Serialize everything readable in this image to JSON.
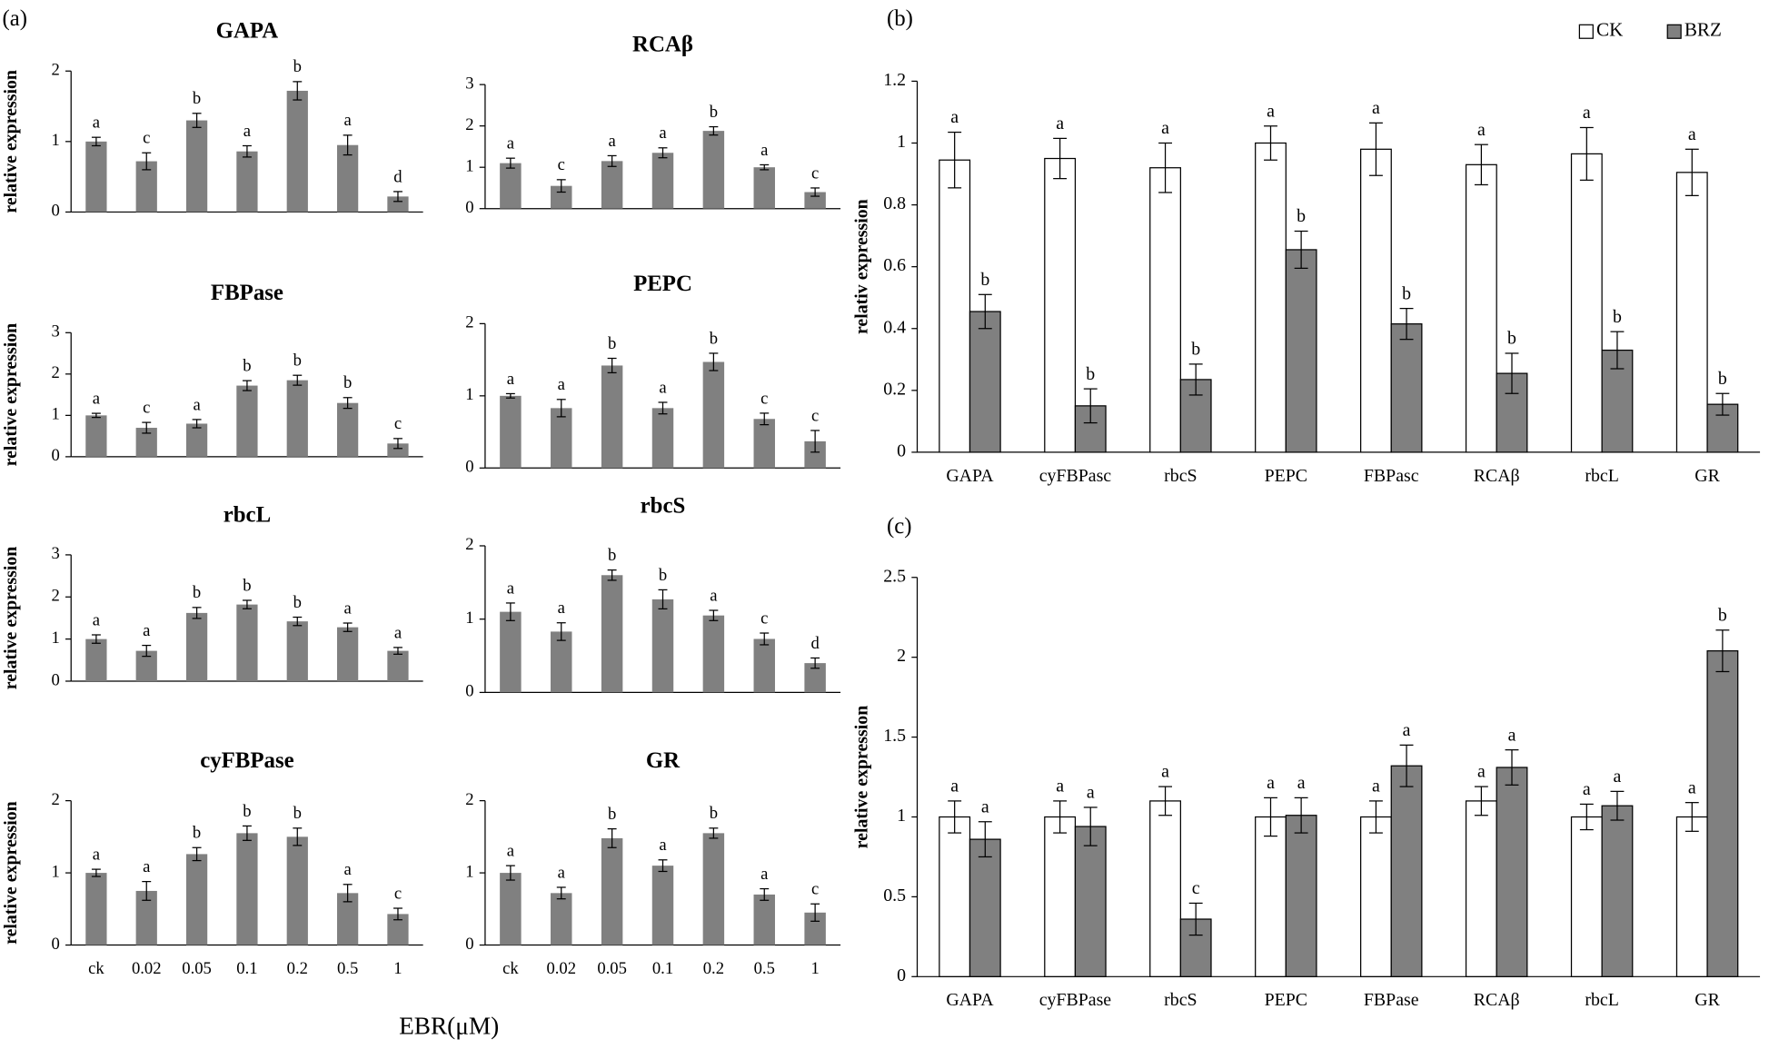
{
  "panel_labels": [
    "(a)",
    "(b)",
    "(c)"
  ],
  "x_label": "EBR(μM)",
  "chart_data": [
    {
      "type": "bar",
      "title": "GAPA",
      "y_label": "relative expression",
      "categories": [
        null,
        null,
        null,
        null,
        null,
        null,
        null
      ],
      "color": "#808080",
      "ylim": [
        0,
        2
      ],
      "yticks": [
        0,
        1,
        2
      ],
      "values": [
        1.0,
        0.72,
        1.3,
        0.86,
        1.72,
        0.95,
        0.22
      ],
      "errors": [
        0.06,
        0.12,
        0.1,
        0.08,
        0.13,
        0.14,
        0.07
      ],
      "letters": [
        "a",
        "c",
        "b",
        "a",
        "b",
        "a",
        "d"
      ]
    },
    {
      "type": "bar",
      "title": "RCAβ",
      "categories": [
        null,
        null,
        null,
        null,
        null,
        null,
        null
      ],
      "color": "#808080",
      "ylim": [
        0,
        3
      ],
      "yticks": [
        0,
        1,
        2,
        3
      ],
      "values": [
        1.1,
        0.55,
        1.15,
        1.35,
        1.88,
        1.0,
        0.4
      ],
      "errors": [
        0.12,
        0.15,
        0.13,
        0.12,
        0.1,
        0.06,
        0.1
      ],
      "letters": [
        "a",
        "c",
        "a",
        "a",
        "b",
        "a",
        "c"
      ]
    },
    {
      "type": "bar",
      "title": "FBPase",
      "y_label": "relative expression",
      "categories": [
        null,
        null,
        null,
        null,
        null,
        null,
        null
      ],
      "color": "#808080",
      "ylim": [
        0,
        3
      ],
      "yticks": [
        0,
        1,
        2,
        3
      ],
      "values": [
        1.0,
        0.7,
        0.8,
        1.72,
        1.85,
        1.3,
        0.32
      ],
      "errors": [
        0.05,
        0.13,
        0.1,
        0.12,
        0.12,
        0.13,
        0.12
      ],
      "letters": [
        "a",
        "c",
        "a",
        "b",
        "b",
        "b",
        "c"
      ]
    },
    {
      "type": "bar",
      "title": "PEPC",
      "categories": [
        null,
        null,
        null,
        null,
        null,
        null,
        null
      ],
      "color": "#808080",
      "ylim": [
        0,
        2
      ],
      "yticks": [
        0,
        1,
        2
      ],
      "values": [
        1.0,
        0.83,
        1.42,
        0.83,
        1.47,
        0.68,
        0.37
      ],
      "errors": [
        0.03,
        0.12,
        0.1,
        0.08,
        0.12,
        0.08,
        0.15
      ],
      "letters": [
        "a",
        "a",
        "b",
        "a",
        "b",
        "c",
        "c"
      ]
    },
    {
      "type": "bar",
      "title": "rbcL",
      "y_label": "relative expression",
      "categories": [
        null,
        null,
        null,
        null,
        null,
        null,
        null
      ],
      "color": "#808080",
      "ylim": [
        0,
        3
      ],
      "yticks": [
        0,
        1,
        2,
        3
      ],
      "values": [
        1.0,
        0.72,
        1.62,
        1.82,
        1.42,
        1.28,
        0.72
      ],
      "errors": [
        0.1,
        0.13,
        0.13,
        0.1,
        0.1,
        0.1,
        0.08
      ],
      "letters": [
        "a",
        "a",
        "b",
        "b",
        "b",
        "a",
        "a"
      ]
    },
    {
      "type": "bar",
      "title": "rbcS",
      "categories": [
        null,
        null,
        null,
        null,
        null,
        null,
        null
      ],
      "color": "#808080",
      "ylim": [
        0,
        2
      ],
      "yticks": [
        0,
        1,
        2
      ],
      "values": [
        1.1,
        0.83,
        1.6,
        1.27,
        1.05,
        0.73,
        0.4
      ],
      "errors": [
        0.12,
        0.12,
        0.07,
        0.13,
        0.07,
        0.08,
        0.07
      ],
      "letters": [
        "a",
        "a",
        "b",
        "b",
        "a",
        "c",
        "d"
      ]
    },
    {
      "type": "bar",
      "title": "cyFBPase",
      "y_label": "relative expression",
      "categories": [
        "ck",
        "0.02",
        "0.05",
        "0.1",
        "0.2",
        "0.5",
        "1"
      ],
      "color": "#808080",
      "ylim": [
        0,
        2
      ],
      "yticks": [
        0,
        1,
        2
      ],
      "values": [
        1.0,
        0.75,
        1.26,
        1.55,
        1.5,
        0.72,
        0.43
      ],
      "errors": [
        0.05,
        0.13,
        0.09,
        0.1,
        0.12,
        0.12,
        0.08
      ],
      "letters": [
        "a",
        "a",
        "b",
        "b",
        "b",
        "a",
        "c"
      ]
    },
    {
      "type": "bar",
      "title": "GR",
      "categories": [
        "ck",
        "0.02",
        "0.05",
        "0.1",
        "0.2",
        "0.5",
        "1"
      ],
      "color": "#808080",
      "ylim": [
        0,
        2
      ],
      "yticks": [
        0,
        1,
        2
      ],
      "values": [
        1.0,
        0.72,
        1.48,
        1.1,
        1.55,
        0.7,
        0.45
      ],
      "errors": [
        0.1,
        0.08,
        0.13,
        0.08,
        0.07,
        0.08,
        0.12
      ],
      "letters": [
        "a",
        "a",
        "b",
        "a",
        "b",
        "a",
        "c"
      ]
    },
    {
      "type": "bar",
      "y_label": "relativ expression",
      "legend": "upper right",
      "categories": [
        "GAPA",
        "cyFBPasc",
        "rbcS",
        "PEPC",
        "FBPasc",
        "RCAβ",
        "rbcL",
        "GR"
      ],
      "ylim": [
        0,
        1.2
      ],
      "yticks": [
        0,
        0.2,
        0.4,
        0.6,
        0.8,
        1,
        1.2
      ],
      "series": [
        {
          "name": "CK",
          "color": "#ffffff",
          "values": [
            0.945,
            0.95,
            0.92,
            1.0,
            0.98,
            0.93,
            0.965,
            0.905
          ],
          "errors": [
            0.09,
            0.065,
            0.08,
            0.055,
            0.085,
            0.065,
            0.085,
            0.075
          ],
          "letters": [
            "a",
            "a",
            "a",
            "a",
            "a",
            "a",
            "a",
            "a"
          ]
        },
        {
          "name": "BRZ",
          "color": "#808080",
          "values": [
            0.455,
            0.15,
            0.235,
            0.655,
            0.415,
            0.255,
            0.33,
            0.155
          ],
          "errors": [
            0.055,
            0.055,
            0.05,
            0.06,
            0.05,
            0.065,
            0.06,
            0.035
          ],
          "letters": [
            "b",
            "b",
            "b",
            "b",
            "b",
            "b",
            "b",
            "b"
          ]
        }
      ]
    },
    {
      "type": "bar",
      "y_label": "relative expression",
      "categories": [
        "GAPA",
        "cyFBPase",
        "rbcS",
        "PEPC",
        "FBPase",
        "RCAβ",
        "rbcL",
        "GR"
      ],
      "ylim": [
        0,
        2.5
      ],
      "yticks": [
        0,
        0.5,
        1,
        1.5,
        2,
        2.5
      ],
      "series": [
        {
          "color": "#ffffff",
          "values": [
            1.0,
            1.0,
            1.1,
            1.0,
            1.0,
            1.1,
            1.0,
            1.0
          ],
          "errors": [
            0.1,
            0.1,
            0.09,
            0.12,
            0.1,
            0.09,
            0.08,
            0.09
          ],
          "letters": [
            "a",
            "a",
            "a",
            "a",
            "a",
            "a",
            "a",
            "a"
          ]
        },
        {
          "color": "#808080",
          "values": [
            0.86,
            0.94,
            0.36,
            1.01,
            1.32,
            1.31,
            1.07,
            2.04
          ],
          "errors": [
            0.11,
            0.12,
            0.1,
            0.11,
            0.13,
            0.11,
            0.09,
            0.13
          ],
          "letters": [
            "a",
            "a",
            "c",
            "a",
            "a",
            "a",
            "a",
            "b"
          ]
        }
      ]
    }
  ]
}
